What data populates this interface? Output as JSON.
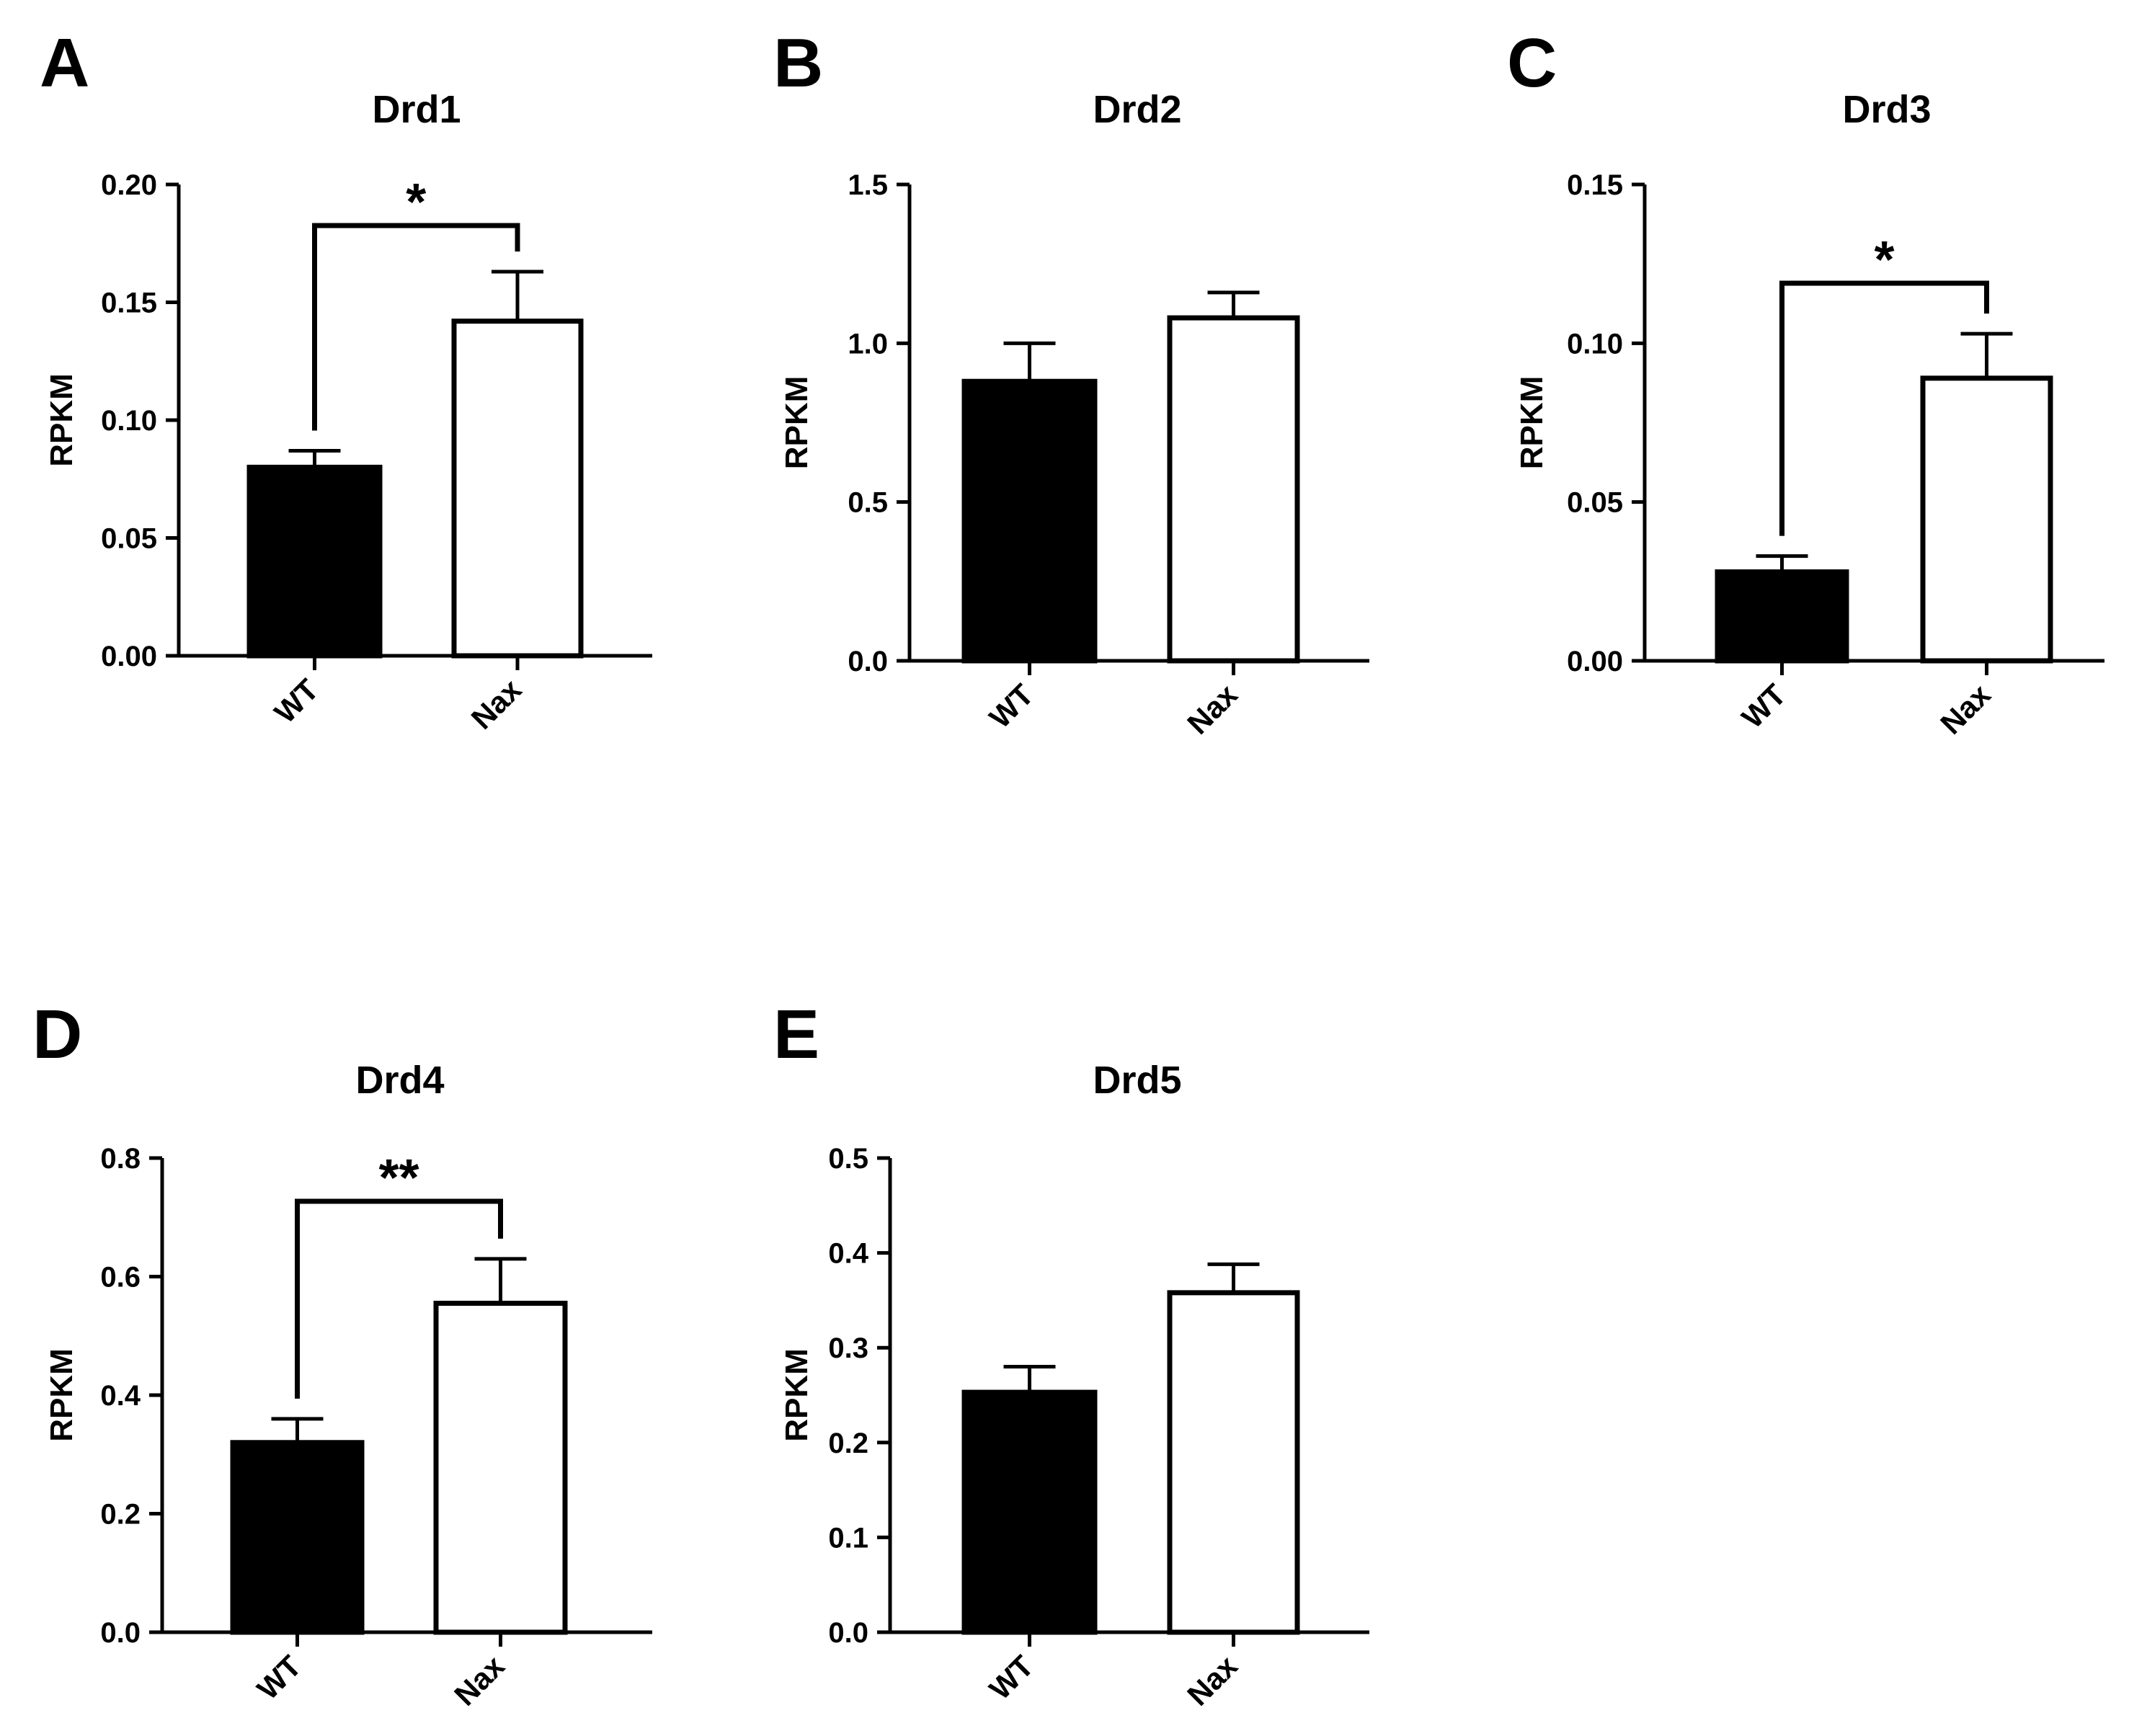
{
  "figure": {
    "colors": {
      "WT": "#000000",
      "Nax": "#ffffff",
      "stroke": "#000000"
    }
  },
  "chart_data": [
    {
      "type": "bar",
      "panel": "A",
      "title": "Drd1",
      "xlabel": "",
      "ylabel": "RPKM",
      "categories": [
        "WT",
        "Nax"
      ],
      "values": [
        0.08,
        0.142
      ],
      "errors": [
        0.007,
        0.021
      ],
      "ylim": [
        0,
        0.2
      ],
      "yticks": [
        "0.00",
        "0.05",
        "0.10",
        "0.15",
        "0.20"
      ],
      "significance": "*",
      "grid": false
    },
    {
      "type": "bar",
      "panel": "B",
      "title": "Drd2",
      "xlabel": "",
      "ylabel": "RPKM",
      "categories": [
        "WT",
        "Nax"
      ],
      "values": [
        0.88,
        1.08
      ],
      "errors": [
        0.12,
        0.08
      ],
      "ylim": [
        0,
        1.5
      ],
      "yticks": [
        "0.0",
        "0.5",
        "1.0",
        "1.5"
      ],
      "significance": "",
      "grid": false
    },
    {
      "type": "bar",
      "panel": "C",
      "title": "Drd3",
      "xlabel": "",
      "ylabel": "RPKM",
      "categories": [
        "WT",
        "Nax"
      ],
      "values": [
        0.028,
        0.089
      ],
      "errors": [
        0.005,
        0.014
      ],
      "ylim": [
        0,
        0.15
      ],
      "yticks": [
        "0.00",
        "0.05",
        "0.10",
        "0.15"
      ],
      "significance": "*",
      "grid": false
    },
    {
      "type": "bar",
      "panel": "D",
      "title": "Drd4",
      "xlabel": "",
      "ylabel": "RPKM",
      "categories": [
        "WT",
        "Nax"
      ],
      "values": [
        0.32,
        0.555
      ],
      "errors": [
        0.04,
        0.075
      ],
      "ylim": [
        0,
        0.8
      ],
      "yticks": [
        "0.0",
        "0.2",
        "0.4",
        "0.6",
        "0.8"
      ],
      "significance": "**",
      "grid": false
    },
    {
      "type": "bar",
      "panel": "E",
      "title": "Drd5",
      "xlabel": "",
      "ylabel": "RPKM",
      "categories": [
        "WT",
        "Nax"
      ],
      "values": [
        0.253,
        0.358
      ],
      "errors": [
        0.027,
        0.03
      ],
      "ylim": [
        0,
        0.5
      ],
      "yticks": [
        "0.0",
        "0.1",
        "0.2",
        "0.3",
        "0.4",
        "0.5"
      ],
      "significance": "",
      "grid": false
    }
  ]
}
